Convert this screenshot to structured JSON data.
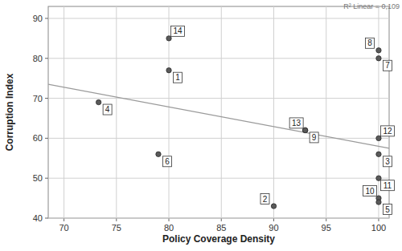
{
  "chart_data": {
    "type": "scatter",
    "x_label": "Policy Coverage Density",
    "y_label": "Corruption Index",
    "annotations": [
      "R² Linear = 0,109"
    ],
    "x": [
      80,
      80,
      73.3,
      79,
      90,
      93,
      93,
      100,
      100,
      100,
      100,
      100,
      100,
      100
    ],
    "values": [
      85,
      77,
      69,
      56,
      43,
      62,
      62,
      82,
      80,
      60,
      56,
      50,
      45,
      44
    ],
    "point_labels": [
      "14",
      "1",
      "4",
      "6",
      "2",
      "13",
      "9",
      "8",
      "7",
      "12",
      "3",
      "11",
      "10",
      "5"
    ],
    "color": "#5a5a5a",
    "trend_line": {
      "x": [
        68.5,
        101
      ],
      "values": [
        73.5,
        57.5
      ],
      "color": "#9a9a9a"
    },
    "xlim": [
      68.5,
      101
    ],
    "xticks": [
      70,
      75,
      80,
      85,
      90,
      95,
      100
    ],
    "ylim": [
      40,
      93
    ],
    "yticks": [
      40,
      50,
      60,
      70,
      80,
      90
    ],
    "grid": true
  }
}
